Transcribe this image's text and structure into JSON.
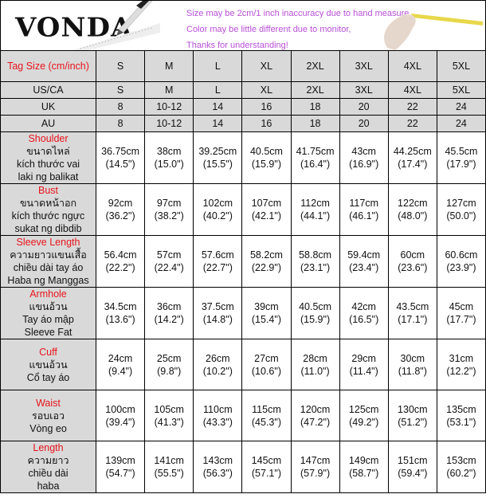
{
  "brand": "VONDA",
  "notes": [
    "Size may be 2cm/1 inch inaccuracy due to hand measure,",
    "Color may be little different due to monitor,",
    "Thanks for understanding!"
  ],
  "colors": {
    "note_text": "#b94fd8",
    "label_red": "#e8141c",
    "header_bg": "#d9d9d9"
  },
  "size_rows": [
    {
      "label": "Tag Size (cm/inch)",
      "values": [
        "S",
        "M",
        "L",
        "XL",
        "2XL",
        "3XL",
        "4XL",
        "5XL"
      ]
    },
    {
      "label": "US/CA",
      "values": [
        "S",
        "M",
        "L",
        "XL",
        "2XL",
        "3XL",
        "4XL",
        "5XL"
      ]
    },
    {
      "label": "UK",
      "values": [
        "8",
        "10-12",
        "14",
        "16",
        "18",
        "20",
        "22",
        "24"
      ]
    },
    {
      "label": "AU",
      "values": [
        "8",
        "10-12",
        "14",
        "16",
        "18",
        "20",
        "22",
        "24"
      ]
    }
  ],
  "measurements": [
    {
      "name": "Shoulder",
      "translations": [
        "ขนาดไหล่",
        "kích thước vai",
        "laki ng balikat"
      ],
      "cm": [
        "36.75cm",
        "38cm",
        "39.25cm",
        "40.5cm",
        "41.75cm",
        "43cm",
        "44.25cm",
        "45.5cm"
      ],
      "inch": [
        "(14.5\")",
        "(15.0\")",
        "(15.5\")",
        "(15.9\")",
        "(16.4\")",
        "(16.9\")",
        "(17.4\")",
        "(17.9\")"
      ]
    },
    {
      "name": "Bust",
      "translations": [
        "ขนาดหน้าอก",
        "kích thước ngực",
        "sukat ng dibdib"
      ],
      "cm": [
        "92cm",
        "97cm",
        "102cm",
        "107cm",
        "112cm",
        "117cm",
        "122cm",
        "127cm"
      ],
      "inch": [
        "(36.2\")",
        "(38.2\")",
        "(40.2\")",
        "(42.1\")",
        "(44.1\")",
        "(46.1\")",
        "(48.0\")",
        "(50.0\")"
      ]
    },
    {
      "name": "Sleeve Length",
      "translations": [
        "ความยาวแขนเสื้อ",
        "chiều dài tay áo",
        "Haba ng Manggas"
      ],
      "cm": [
        "56.4cm",
        "57cm",
        "57.6cm",
        "58.2cm",
        "58.8cm",
        "59.4cm",
        "60cm",
        "60.6cm"
      ],
      "inch": [
        "(22.2\")",
        "(22.4\")",
        "(22.7\")",
        "(22.9\")",
        "(23.1\")",
        "(23.4\")",
        "(23.6\")",
        "(23.9\")"
      ]
    },
    {
      "name": "Armhole",
      "translations": [
        "แขนอ้วน",
        "Tay áo mập",
        "Sleeve Fat"
      ],
      "cm": [
        "34.5cm",
        "36cm",
        "37.5cm",
        "39cm",
        "40.5cm",
        "42cm",
        "43.5cm",
        "45cm"
      ],
      "inch": [
        "(13.6\")",
        "(14.2\")",
        "(14.8\")",
        "(15.4\")",
        "(15.9\")",
        "(16.5\")",
        "(17.1\")",
        "(17.7\")"
      ]
    },
    {
      "name": "Cuff",
      "translations": [
        "แขนอ้วน",
        "Cổ tay áo"
      ],
      "cm": [
        "24cm",
        "25cm",
        "26cm",
        "27cm",
        "28cm",
        "29cm",
        "30cm",
        "31cm"
      ],
      "inch": [
        "(9.4\")",
        "(9.8\")",
        "(10.2\")",
        "(10.6\")",
        "(11.0\")",
        "(11.4\")",
        "(11.8\")",
        "(12.2\")"
      ]
    },
    {
      "name": "Waist",
      "translations": [
        "รอบเอว",
        "Vòng eo"
      ],
      "cm": [
        "100cm",
        "105cm",
        "110cm",
        "115cm",
        "120cm",
        "125cm",
        "130cm",
        "135cm"
      ],
      "inch": [
        "(39.4\")",
        "(41.3\")",
        "(43.3\")",
        "(45.3\")",
        "(47.2\")",
        "(49.2\")",
        "(51.2\")",
        "(53.1\")"
      ]
    },
    {
      "name": "Length",
      "translations": [
        "ความยาว",
        "chiều dài",
        "haba"
      ],
      "cm": [
        "139cm",
        "141cm",
        "143cm",
        "145cm",
        "147cm",
        "149cm",
        "151cm",
        "153cm"
      ],
      "inch": [
        "(54.7\")",
        "(55.5\")",
        "(56.3\")",
        "(57.1\")",
        "(57.9\")",
        "(58.7\")",
        "(59.4\")",
        "(60.2\")"
      ]
    }
  ]
}
